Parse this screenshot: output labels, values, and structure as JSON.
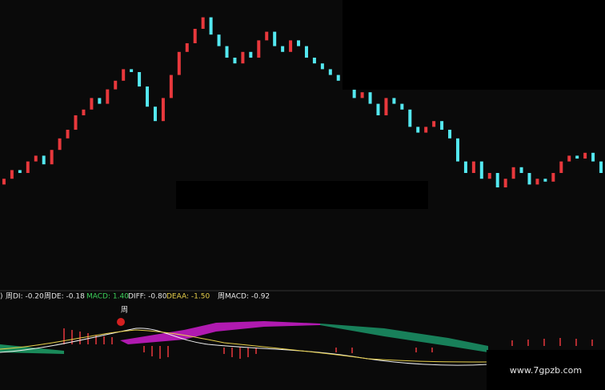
{
  "chart_data": {
    "type": "candlestick",
    "open": [
      36,
      38,
      41,
      40,
      44,
      46,
      43,
      48,
      52,
      55,
      60,
      62,
      66,
      64,
      69,
      72,
      76,
      75,
      70,
      63,
      58,
      66,
      74,
      82,
      85,
      90,
      94,
      88,
      84,
      80,
      78,
      82,
      80,
      86,
      89,
      84,
      82,
      86,
      84,
      80,
      78,
      76,
      74,
      72,
      70,
      66,
      68,
      64,
      60,
      66,
      64,
      62,
      56,
      54,
      56,
      58,
      55,
      52,
      44,
      40,
      44,
      38,
      40,
      35,
      38,
      42,
      40,
      36,
      38,
      37,
      40,
      44,
      46,
      45,
      47,
      44
    ],
    "close": [
      38,
      41,
      40,
      44,
      46,
      43,
      48,
      52,
      55,
      60,
      62,
      66,
      64,
      69,
      72,
      76,
      75,
      70,
      63,
      58,
      66,
      74,
      82,
      85,
      90,
      94,
      88,
      84,
      80,
      78,
      82,
      80,
      86,
      89,
      84,
      82,
      86,
      84,
      80,
      78,
      76,
      74,
      72,
      70,
      66,
      68,
      64,
      60,
      66,
      64,
      62,
      56,
      54,
      56,
      58,
      55,
      52,
      44,
      40,
      44,
      38,
      40,
      35,
      38,
      42,
      40,
      36,
      38,
      37,
      40,
      44,
      46,
      45,
      47,
      44,
      40
    ],
    "ylim": [
      0,
      100
    ],
    "up_color": "#e8383c",
    "down_color": "#54e8f0",
    "annotations": [
      ")",
      "周DI: -0.20",
      "周DE: -0.18",
      "MACD: 1.40",
      "DIFF: -0.80",
      "DEAA: -1.50",
      "周MACD: -0.92"
    ],
    "marker_label": "周",
    "watermark": "www.7gpzb.com"
  }
}
